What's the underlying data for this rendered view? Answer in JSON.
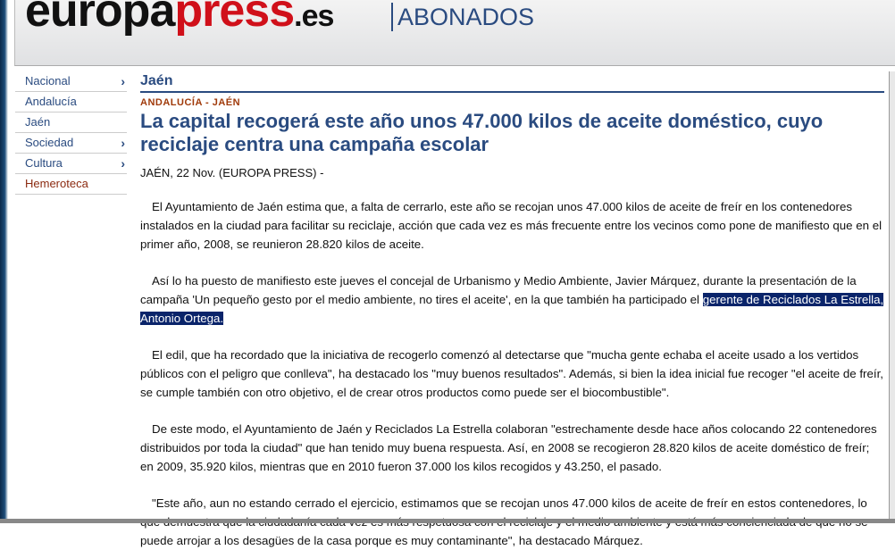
{
  "header": {
    "logo_part1": "europa",
    "logo_part2": "press",
    "logo_part3": ".es",
    "section_label": "ABONADOS"
  },
  "sidebar": {
    "items": [
      {
        "label": "Nacional",
        "has_submenu": true
      },
      {
        "label": "Andalucía",
        "has_submenu": false
      },
      {
        "label": "Jaén",
        "has_submenu": false
      },
      {
        "label": "Sociedad",
        "has_submenu": true
      },
      {
        "label": "Cultura",
        "has_submenu": true
      },
      {
        "label": "Hemeroteca",
        "has_submenu": false
      }
    ],
    "chevron": "›"
  },
  "article": {
    "section": "Jaén",
    "kicker": "ANDALUCÍA - JAÉN",
    "title": "La capital recogerá este año unos 47.000 kilos de aceite doméstico, cuyo reciclaje centra una campaña escolar",
    "dateline": "JAÉN, 22 Nov. (EUROPA PRESS) -",
    "p1": "El Ayuntamiento de Jaén estima que, a falta de cerrarlo, este año se recojan unos 47.000 kilos de aceite de freír en los contenedores instalados en la ciudad para facilitar su reciclaje, acción que cada vez es más frecuente entre los vecinos como pone de manifiesto que en el primer año, 2008, se reunieron 28.820 kilos de aceite.",
    "p2a": "Así lo ha puesto de manifiesto este jueves el concejal de Urbanismo y Medio Ambiente, Javier Márquez, durante la presentación de la campaña 'Un pequeño gesto por el medio ambiente, no tires el aceite', en la que también ha participado el ",
    "p2_selected": "gerente de Reciclados La Estrella, Antonio Ortega.",
    "p3": "El edil, que ha recordado que la iniciativa de recogerlo comenzó al detectarse que \"mucha gente echaba el aceite usado a los vertidos públicos con el peligro que conlleva\", ha destacado los \"muy buenos resultados\". Además, si bien la idea inicial fue recoger \"el aceite de freír, se cumple también con otro objetivo, el de crear otros productos como puede ser el biocombustible\".",
    "p4": "De este modo, el Ayuntamiento de Jaén y Reciclados La Estrella colaboran \"estrechamente desde hace años colocando 22 contenedores distribuidos por toda la ciudad\" que han tenido muy buena respuesta. Así, en 2008 se recogieron 28.820 kilos de aceite doméstico de freír; en 2009, 35.920 kilos, mientras que en 2010 fueron 37.000 los kilos recogidos y 43.250, el pasado.",
    "p5": "\"Este año, aun no estando cerrado el ejercicio, estimamos que se recojan unos 47.000 kilos de aceite de freír en estos contenedores, lo que demuestra que la ciudadanía cada vez es más respetuosa con el reciclaje y el medio ambiente y está más concienciada de que no se puede arrojar a los desagües de la casa porque es muy contaminante\", ha destacado Márquez."
  }
}
